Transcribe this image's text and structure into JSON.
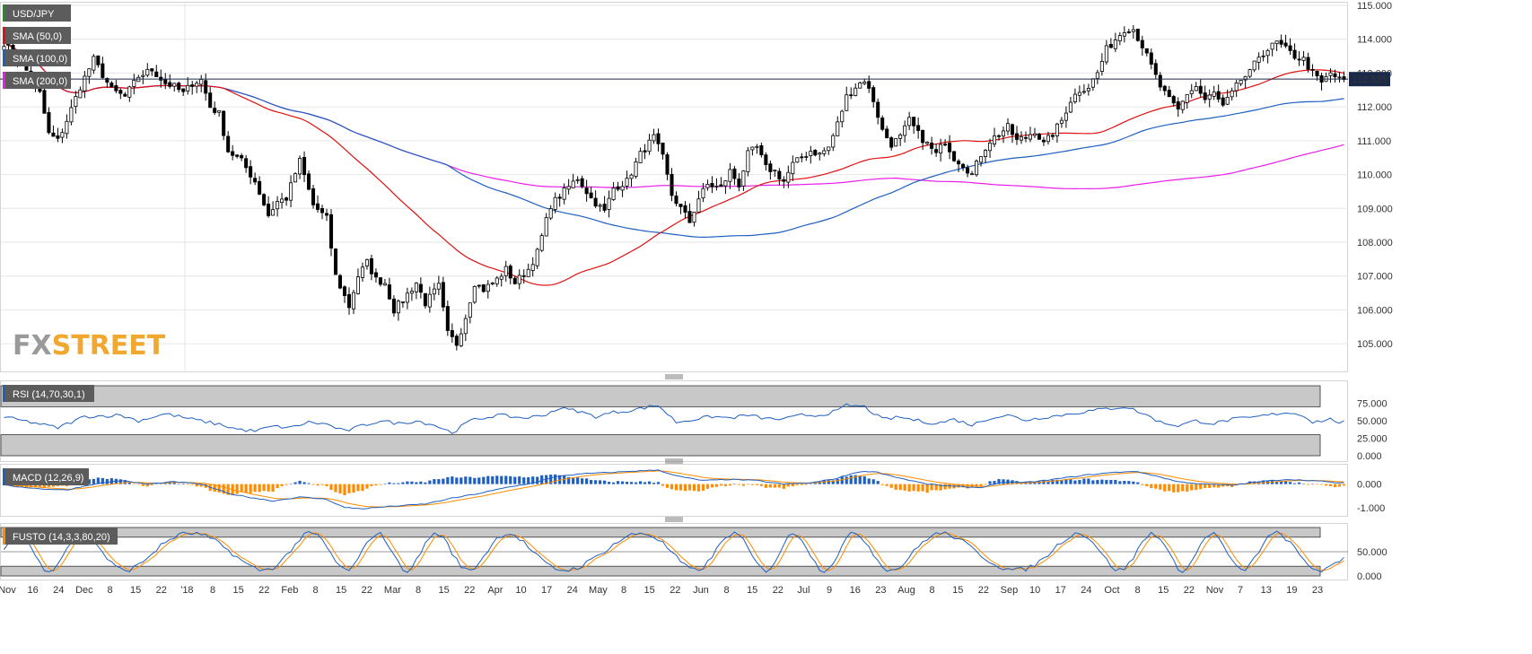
{
  "chart_data": [
    {
      "type": "candlestick",
      "title": "USD/JPY",
      "ylim": [
        104.5,
        115.0
      ],
      "y_ticks": [
        "115.000",
        "114.000",
        "113.000",
        "112.000",
        "111.000",
        "110.000",
        "109.000",
        "108.000",
        "107.000",
        "106.000",
        "105.000"
      ],
      "x_ticks": [
        "Nov",
        "16",
        "24",
        "Dec",
        "8",
        "15",
        "22",
        "'18",
        "8",
        "15",
        "22",
        "Feb",
        "8",
        "15",
        "22",
        "Mar",
        "8",
        "15",
        "22",
        "Apr",
        "10",
        "17",
        "24",
        "May",
        "8",
        "15",
        "22",
        "Jun",
        "8",
        "15",
        "22",
        "Jul",
        "9",
        "16",
        "23",
        "Aug",
        "8",
        "15",
        "22",
        "Sep",
        "10",
        "17",
        "24",
        "Oct",
        "8",
        "15",
        "22",
        "Nov",
        "7",
        "13",
        "19",
        "23"
      ],
      "last_price": "112.821",
      "legend": [
        {
          "label": "USD/JPY",
          "color": "#1f8f1f"
        },
        {
          "label": "SMA (50,0)",
          "color": "#e01010"
        },
        {
          "label": "SMA (100,0)",
          "color": "#1f5fbf"
        },
        {
          "label": "SMA (200,0)",
          "color": "#e81ee8"
        }
      ],
      "close_anchors": [
        [
          0,
          113.9
        ],
        [
          4,
          113.3
        ],
        [
          8,
          112.4
        ],
        [
          10,
          111.2
        ],
        [
          12,
          111.0
        ],
        [
          14,
          111.6
        ],
        [
          17,
          112.6
        ],
        [
          20,
          113.4
        ],
        [
          24,
          112.5
        ],
        [
          27,
          112.3
        ],
        [
          30,
          112.9
        ],
        [
          33,
          113.1
        ],
        [
          36,
          112.7
        ],
        [
          38,
          112.6
        ],
        [
          40,
          112.4
        ],
        [
          42,
          112.7
        ],
        [
          44,
          112.8
        ],
        [
          46,
          112.0
        ],
        [
          48,
          111.8
        ],
        [
          50,
          110.7
        ],
        [
          53,
          110.4
        ],
        [
          56,
          109.8
        ],
        [
          59,
          108.8
        ],
        [
          61,
          109.2
        ],
        [
          63,
          109.3
        ],
        [
          66,
          110.4
        ],
        [
          69,
          109.1
        ],
        [
          72,
          108.7
        ],
        [
          74,
          107.0
        ],
        [
          77,
          106.1
        ],
        [
          79,
          107.0
        ],
        [
          81,
          107.4
        ],
        [
          83,
          106.9
        ],
        [
          85,
          106.8
        ],
        [
          87,
          106.0
        ],
        [
          89,
          106.3
        ],
        [
          92,
          106.8
        ],
        [
          94,
          106.2
        ],
        [
          97,
          106.7
        ],
        [
          99,
          105.3
        ],
        [
          101,
          105.0
        ],
        [
          103,
          105.8
        ],
        [
          105,
          106.8
        ],
        [
          107,
          106.6
        ],
        [
          110,
          106.9
        ],
        [
          112,
          107.2
        ],
        [
          114,
          106.8
        ],
        [
          117,
          107.2
        ],
        [
          119,
          107.7
        ],
        [
          122,
          109.1
        ],
        [
          125,
          109.5
        ],
        [
          128,
          109.9
        ],
        [
          131,
          109.3
        ],
        [
          134,
          108.9
        ],
        [
          136,
          109.6
        ],
        [
          139,
          109.8
        ],
        [
          142,
          110.6
        ],
        [
          145,
          111.1
        ],
        [
          147,
          110.5
        ],
        [
          149,
          109.4
        ],
        [
          151,
          109.0
        ],
        [
          153,
          108.6
        ],
        [
          155,
          109.3
        ],
        [
          157,
          109.7
        ],
        [
          160,
          109.6
        ],
        [
          162,
          110.1
        ],
        [
          164,
          109.7
        ],
        [
          166,
          110.6
        ],
        [
          168,
          110.8
        ],
        [
          170,
          110.2
        ],
        [
          172,
          110.1
        ],
        [
          174,
          109.8
        ],
        [
          176,
          110.3
        ],
        [
          178,
          110.5
        ],
        [
          180,
          110.7
        ],
        [
          182,
          110.6
        ],
        [
          184,
          110.8
        ],
        [
          186,
          111.5
        ],
        [
          188,
          112.3
        ],
        [
          190,
          112.6
        ],
        [
          192,
          112.8
        ],
        [
          194,
          112.2
        ],
        [
          196,
          111.3
        ],
        [
          198,
          110.9
        ],
        [
          200,
          111.1
        ],
        [
          202,
          111.6
        ],
        [
          204,
          111.2
        ],
        [
          206,
          110.9
        ],
        [
          208,
          110.6
        ],
        [
          210,
          111.0
        ],
        [
          212,
          110.5
        ],
        [
          214,
          110.3
        ],
        [
          216,
          110.0
        ],
        [
          218,
          110.6
        ],
        [
          220,
          111.0
        ],
        [
          222,
          111.2
        ],
        [
          224,
          111.4
        ],
        [
          226,
          111.0
        ],
        [
          228,
          111.1
        ],
        [
          230,
          111.3
        ],
        [
          232,
          110.9
        ],
        [
          234,
          111.2
        ],
        [
          236,
          111.6
        ],
        [
          238,
          112.2
        ],
        [
          240,
          112.5
        ],
        [
          242,
          112.6
        ],
        [
          244,
          113.0
        ],
        [
          246,
          113.7
        ],
        [
          248,
          114.0
        ],
        [
          250,
          114.3
        ],
        [
          252,
          114.3
        ],
        [
          254,
          113.8
        ],
        [
          256,
          113.2
        ],
        [
          258,
          112.6
        ],
        [
          260,
          112.2
        ],
        [
          262,
          111.9
        ],
        [
          264,
          112.4
        ],
        [
          266,
          112.6
        ],
        [
          268,
          112.2
        ],
        [
          270,
          112.4
        ],
        [
          272,
          112.0
        ],
        [
          274,
          112.4
        ],
        [
          276,
          112.8
        ],
        [
          278,
          113.0
        ],
        [
          280,
          113.5
        ],
        [
          282,
          113.7
        ],
        [
          284,
          113.9
        ],
        [
          286,
          113.7
        ],
        [
          288,
          113.5
        ],
        [
          290,
          113.4
        ],
        [
          292,
          113.0
        ],
        [
          294,
          112.7
        ],
        [
          296,
          113.0
        ],
        [
          298,
          112.8
        ]
      ],
      "n": 300,
      "seed": 7
    },
    {
      "type": "line",
      "title": "RSI (14,70,30,1)",
      "ylim": [
        0,
        100
      ],
      "y_ticks": [
        "75.000",
        "50.000",
        "25.000",
        "0.000"
      ],
      "bands": [
        70,
        30
      ],
      "series_anchors": [
        [
          0,
          55
        ],
        [
          6,
          48
        ],
        [
          12,
          40
        ],
        [
          18,
          56
        ],
        [
          26,
          58
        ],
        [
          30,
          50
        ],
        [
          36,
          60
        ],
        [
          42,
          52
        ],
        [
          48,
          45
        ],
        [
          52,
          38
        ],
        [
          56,
          35
        ],
        [
          60,
          42
        ],
        [
          64,
          40
        ],
        [
          68,
          48
        ],
        [
          72,
          45
        ],
        [
          76,
          35
        ],
        [
          80,
          43
        ],
        [
          84,
          50
        ],
        [
          88,
          46
        ],
        [
          92,
          50
        ],
        [
          96,
          44
        ],
        [
          100,
          33
        ],
        [
          104,
          50
        ],
        [
          110,
          58
        ],
        [
          116,
          54
        ],
        [
          120,
          57
        ],
        [
          124,
          68
        ],
        [
          128,
          64
        ],
        [
          132,
          56
        ],
        [
          136,
          62
        ],
        [
          140,
          65
        ],
        [
          144,
          70
        ],
        [
          146,
          72
        ],
        [
          150,
          48
        ],
        [
          154,
          52
        ],
        [
          158,
          56
        ],
        [
          162,
          54
        ],
        [
          166,
          58
        ],
        [
          170,
          53
        ],
        [
          174,
          52
        ],
        [
          178,
          58
        ],
        [
          182,
          58
        ],
        [
          186,
          64
        ],
        [
          188,
          72
        ],
        [
          192,
          70
        ],
        [
          196,
          52
        ],
        [
          200,
          55
        ],
        [
          204,
          50
        ],
        [
          208,
          46
        ],
        [
          212,
          52
        ],
        [
          216,
          44
        ],
        [
          220,
          54
        ],
        [
          224,
          58
        ],
        [
          228,
          51
        ],
        [
          232,
          55
        ],
        [
          236,
          58
        ],
        [
          240,
          62
        ],
        [
          246,
          67
        ],
        [
          250,
          70
        ],
        [
          252,
          66
        ],
        [
          256,
          55
        ],
        [
          258,
          48
        ],
        [
          262,
          43
        ],
        [
          266,
          50
        ],
        [
          270,
          46
        ],
        [
          274,
          52
        ],
        [
          278,
          54
        ],
        [
          282,
          58
        ],
        [
          286,
          62
        ],
        [
          290,
          58
        ],
        [
          292,
          48
        ],
        [
          296,
          52
        ],
        [
          298,
          48
        ]
      ]
    },
    {
      "type": "bar+line",
      "title": "MACD (12,26,9)",
      "ylim": [
        -1.2,
        0.75
      ],
      "y_ticks": [
        "0.000",
        "-1.000"
      ],
      "macd_anchors": [
        [
          0,
          -0.05
        ],
        [
          8,
          -0.2
        ],
        [
          14,
          -0.25
        ],
        [
          20,
          0.0
        ],
        [
          26,
          0.15
        ],
        [
          32,
          0.0
        ],
        [
          38,
          0.1
        ],
        [
          44,
          0.0
        ],
        [
          50,
          -0.4
        ],
        [
          56,
          -0.6
        ],
        [
          60,
          -0.72
        ],
        [
          66,
          -0.55
        ],
        [
          72,
          -0.65
        ],
        [
          76,
          -1.0
        ],
        [
          80,
          -1.05
        ],
        [
          86,
          -0.95
        ],
        [
          94,
          -0.85
        ],
        [
          100,
          -0.6
        ],
        [
          106,
          -0.4
        ],
        [
          112,
          -0.15
        ],
        [
          118,
          0.05
        ],
        [
          124,
          0.35
        ],
        [
          130,
          0.45
        ],
        [
          136,
          0.5
        ],
        [
          140,
          0.55
        ],
        [
          146,
          0.6
        ],
        [
          150,
          0.35
        ],
        [
          156,
          0.15
        ],
        [
          162,
          0.2
        ],
        [
          168,
          0.15
        ],
        [
          174,
          0.0
        ],
        [
          180,
          0.05
        ],
        [
          186,
          0.25
        ],
        [
          190,
          0.5
        ],
        [
          194,
          0.55
        ],
        [
          200,
          0.25
        ],
        [
          206,
          0.0
        ],
        [
          212,
          -0.1
        ],
        [
          218,
          -0.15
        ],
        [
          222,
          0.05
        ],
        [
          230,
          0.1
        ],
        [
          236,
          0.25
        ],
        [
          242,
          0.4
        ],
        [
          248,
          0.5
        ],
        [
          252,
          0.55
        ],
        [
          256,
          0.4
        ],
        [
          262,
          0.1
        ],
        [
          268,
          0.0
        ],
        [
          274,
          -0.05
        ],
        [
          280,
          0.1
        ],
        [
          286,
          0.2
        ],
        [
          292,
          0.15
        ],
        [
          298,
          0.05
        ]
      ],
      "series": [
        {
          "name": "MACD",
          "color": "#1f5fbf"
        },
        {
          "name": "Signal",
          "color": "#ff8c00"
        }
      ]
    },
    {
      "type": "line",
      "title": "FUSTO (14,3,3,80,20)",
      "ylim": [
        0,
        100
      ],
      "y_ticks": [
        "50.000",
        "0.000"
      ],
      "bands": [
        80,
        20
      ],
      "series": [
        {
          "name": "%K",
          "color": "#1f5fbf"
        },
        {
          "name": "%D",
          "color": "#ff8c00"
        }
      ]
    }
  ],
  "branding": {
    "fx": "FX",
    "street": "STREET"
  },
  "colors": {
    "up": "#ffffff",
    "down": "#000000",
    "sma50": "#e01010",
    "sma100": "#1f5fbf",
    "sma200": "#e81ee8",
    "band": "#c8c8c8",
    "grid": "#e6e6e6",
    "price_tag": "#1b2a4a"
  }
}
